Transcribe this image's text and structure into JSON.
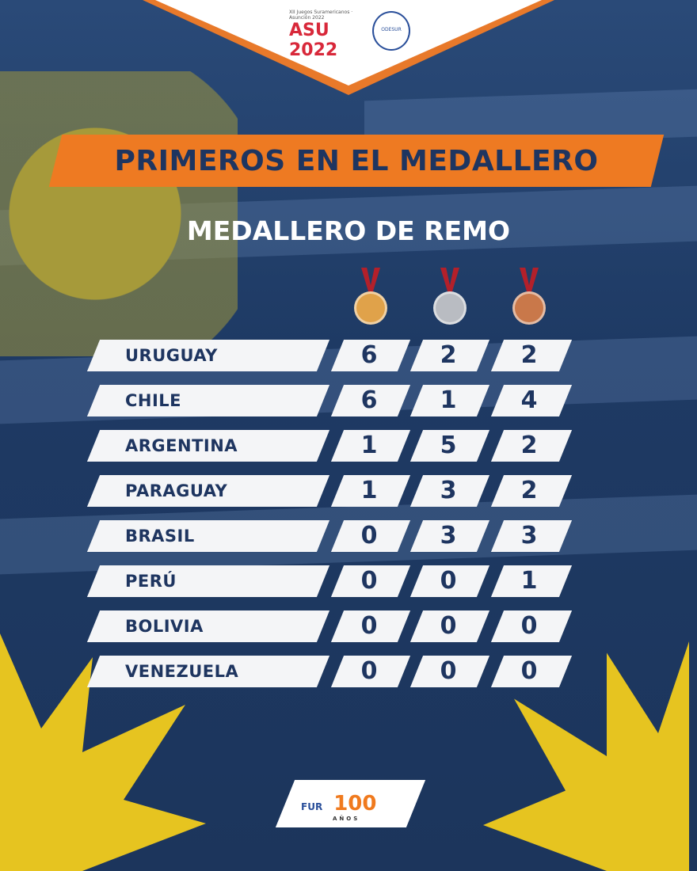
{
  "header": {
    "logo_games": "ASU 2022",
    "logo_games_sub": "XII Juegos Suramericanos · Asunción 2022",
    "logo_odesur": "ODESUR"
  },
  "title": "PRIMEROS EN EL MEDALLERO",
  "subtitle": "MEDALLERO DE REMO",
  "medals": [
    {
      "type": "gold",
      "color": "#e0a24a"
    },
    {
      "type": "silver",
      "color": "#b9bcc2"
    },
    {
      "type": "bronze",
      "color": "#c9784a"
    }
  ],
  "table": [
    {
      "country": "URUGUAY",
      "gold": "6",
      "silver": "2",
      "bronze": "2"
    },
    {
      "country": "CHILE",
      "gold": "6",
      "silver": "1",
      "bronze": "4"
    },
    {
      "country": "ARGENTINA",
      "gold": "1",
      "silver": "5",
      "bronze": "2"
    },
    {
      "country": "PARAGUAY",
      "gold": "1",
      "silver": "3",
      "bronze": "2"
    },
    {
      "country": "BRASIL",
      "gold": "0",
      "silver": "3",
      "bronze": "3"
    },
    {
      "country": "PERÚ",
      "gold": "0",
      "silver": "0",
      "bronze": "1"
    },
    {
      "country": "BOLIVIA",
      "gold": "0",
      "silver": "0",
      "bronze": "0"
    },
    {
      "country": "VENEZUELA",
      "gold": "0",
      "silver": "0",
      "bronze": "0"
    }
  ],
  "footer": {
    "logo_fur": "FUR",
    "logo_100": "100",
    "logo_100_sub": "AÑOS"
  }
}
